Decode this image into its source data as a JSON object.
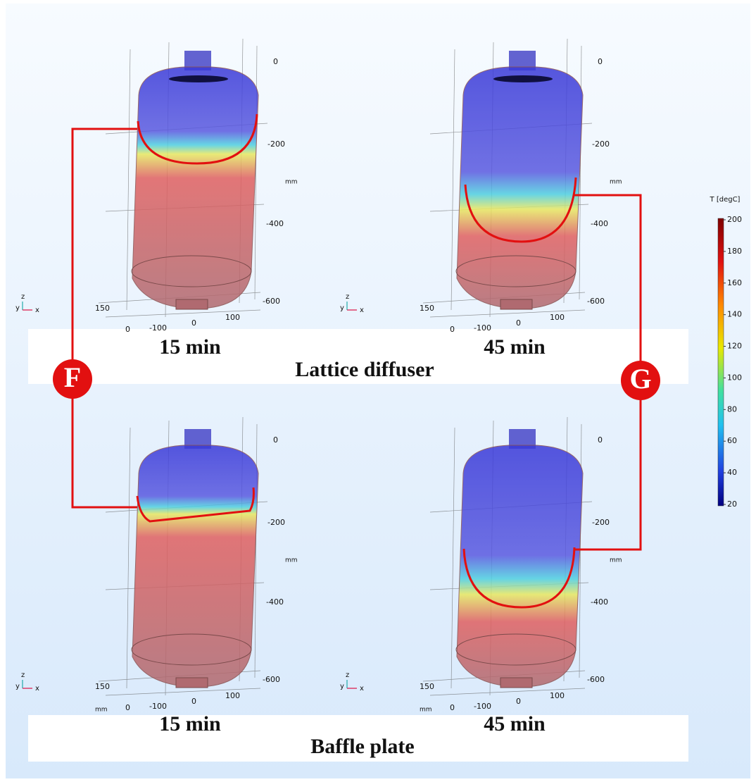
{
  "panels": [
    {
      "time": "15 min",
      "z_ticks": [
        "0",
        "-200",
        "-400",
        "-600"
      ],
      "z_unit": "mm",
      "y_ticks": [
        "150",
        "0"
      ],
      "x_ticks": [
        "-100",
        "0",
        "100"
      ],
      "triad": [
        "z",
        "y",
        "x"
      ]
    },
    {
      "time": "45 min",
      "z_ticks": [
        "0",
        "-200",
        "-400",
        "-600"
      ],
      "z_unit": "mm",
      "y_ticks": [
        "150",
        "0"
      ],
      "x_ticks": [
        "-100",
        "0",
        "100"
      ],
      "triad": [
        "z",
        "y",
        "x"
      ]
    },
    {
      "time": "15 min",
      "z_ticks": [
        "0",
        "-200",
        "-400",
        "-600"
      ],
      "z_unit": "mm",
      "y_ticks": [
        "150",
        "0"
      ],
      "x_ticks": [
        "-100",
        "0",
        "100"
      ],
      "triad": [
        "z",
        "y",
        "x"
      ],
      "xy_unit": "mm"
    },
    {
      "time": "45 min",
      "z_ticks": [
        "0",
        "-200",
        "-400",
        "-600"
      ],
      "z_unit": "mm",
      "y_ticks": [
        "150",
        "0"
      ],
      "x_ticks": [
        "-100",
        "0",
        "100"
      ],
      "triad": [
        "z",
        "y",
        "x"
      ],
      "xy_unit": "mm"
    }
  ],
  "groups": [
    "Lattice diffuser",
    "Baffle plate"
  ],
  "markers": [
    "F",
    "G"
  ],
  "colorbar": {
    "title": "T [degC]",
    "ticks": [
      200,
      180,
      160,
      140,
      120,
      100,
      80,
      60,
      40,
      20
    ]
  }
}
